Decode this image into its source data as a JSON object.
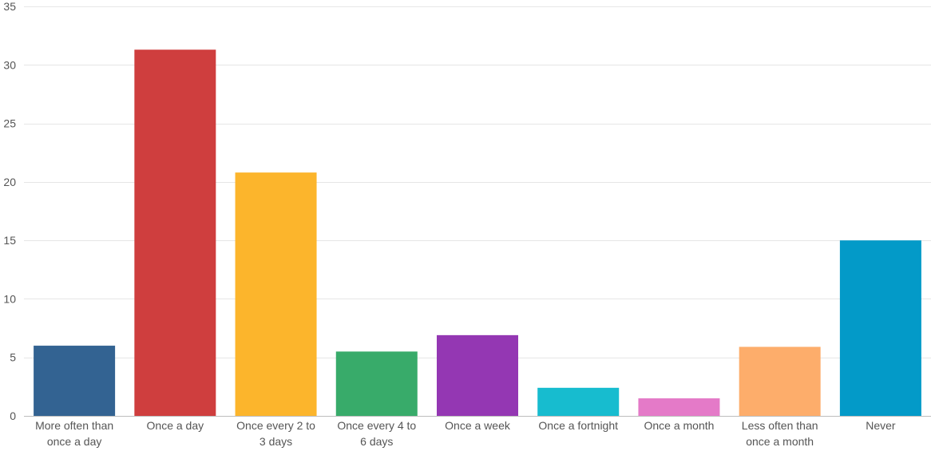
{
  "chart_data": {
    "type": "bar",
    "title": "",
    "xlabel": "",
    "ylabel": "",
    "ylim": [
      0,
      35
    ],
    "yticks": [
      0,
      5,
      10,
      15,
      20,
      25,
      30,
      35
    ],
    "grid": true,
    "legend": "none",
    "categories": [
      [
        "More often than",
        "once a day"
      ],
      [
        "Once a day"
      ],
      [
        "Once every 2 to",
        "3 days"
      ],
      [
        "Once every 4 to",
        "6 days"
      ],
      [
        "Once a week"
      ],
      [
        "Once a fortnight"
      ],
      [
        "Once a month"
      ],
      [
        "Less often than",
        "once a month"
      ],
      [
        "Never"
      ]
    ],
    "values": [
      6.0,
      31.3,
      20.8,
      5.5,
      6.9,
      2.4,
      1.5,
      5.9,
      15.0
    ],
    "colors": [
      "#336392",
      "#cf3e3e",
      "#fcb52c",
      "#38ab6a",
      "#9437b3",
      "#17bccf",
      "#e47ac8",
      "#fdad6b",
      "#039ac8"
    ]
  }
}
